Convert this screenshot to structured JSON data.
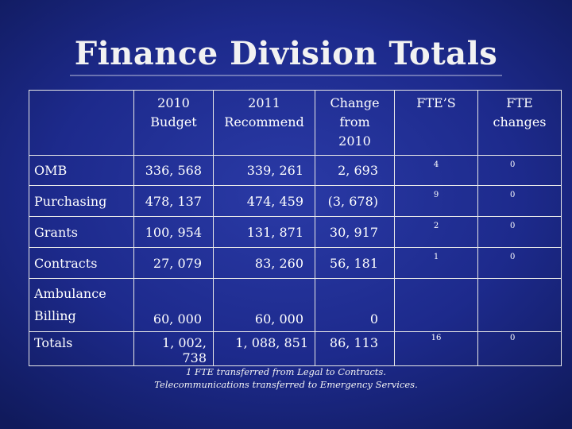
{
  "title": "Finance Division Totals",
  "table": {
    "headers": [
      {
        "line1": "",
        "line2": "",
        "line3": ""
      },
      {
        "line1": "2010",
        "line2": "Budget",
        "line3": ""
      },
      {
        "line1": "2011",
        "line2": "Recommend",
        "line3": ""
      },
      {
        "line1": "Change",
        "line2": "from",
        "line3": "2010"
      },
      {
        "line1": "FTE’S",
        "line2": "",
        "line3": ""
      },
      {
        "line1": "FTE",
        "line2": "changes",
        "line3": ""
      }
    ],
    "rows": [
      {
        "label_line1": "OMB",
        "label_line2": "",
        "budget_2010": "336, 568",
        "recommend_2011": "339, 261",
        "change": "2, 693",
        "ftes": "4",
        "fte_changes": "0"
      },
      {
        "label_line1": "Purchasing",
        "label_line2": "",
        "budget_2010": "478, 137",
        "recommend_2011": "474, 459",
        "change": "(3, 678)",
        "ftes": "9",
        "fte_changes": "0"
      },
      {
        "label_line1": "Grants",
        "label_line2": "",
        "budget_2010": "100, 954",
        "recommend_2011": "131, 871",
        "change": "30, 917",
        "ftes": "2",
        "fte_changes": "0"
      },
      {
        "label_line1": "Contracts",
        "label_line2": "",
        "budget_2010": "27, 079",
        "recommend_2011": "83, 260",
        "change": "56, 181",
        "ftes": "1",
        "fte_changes": "0"
      },
      {
        "label_line1": "Ambulance",
        "label_line2": "Billing",
        "budget_2010": "60, 000",
        "recommend_2011": "60, 000",
        "change": "0",
        "ftes": "",
        "fte_changes": ""
      },
      {
        "label_line1": "Totals",
        "label_line2": "",
        "budget_2010": "1, 002, 738",
        "recommend_2011": "1, 088, 851",
        "change": "86, 113",
        "ftes": "16",
        "fte_changes": "0"
      }
    ]
  },
  "footnotes": [
    "1 FTE transferred from Legal to Contracts.",
    "Telecommunications transferred to Emergency Services."
  ]
}
